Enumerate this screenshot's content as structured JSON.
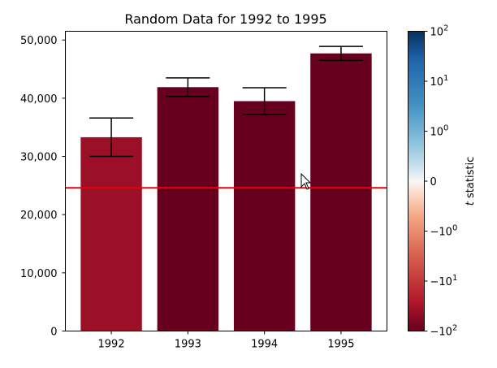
{
  "chart_data": {
    "type": "bar",
    "title": "Random Data for 1992 to 1995",
    "xlabel": "",
    "ylabel": "",
    "categories": [
      "1992",
      "1993",
      "1994",
      "1995"
    ],
    "values": [
      33300,
      41900,
      39500,
      47700
    ],
    "error": [
      3300,
      1600,
      2300,
      1200
    ],
    "bar_colors": [
      "#9b1026",
      "#67001f",
      "#67001f",
      "#67001f"
    ],
    "error_bar_color": "#000000",
    "ylim": [
      0,
      51500
    ],
    "yticks": [
      0,
      10000,
      20000,
      30000,
      40000,
      50000
    ],
    "ytick_labels": [
      "0",
      "10,000",
      "20,000",
      "30,000",
      "40,000",
      "50,000"
    ],
    "reference_line": {
      "y": 24600,
      "color": "#e8000b"
    },
    "grid": false,
    "colorbar": {
      "label_prefix": "t",
      "label_suffix": " statistic",
      "colormap": "RdBu",
      "scale": "symlog",
      "ticks": [
        {
          "base": "10",
          "exp": "2",
          "sign": ""
        },
        {
          "base": "10",
          "exp": "1",
          "sign": ""
        },
        {
          "base": "10",
          "exp": "0",
          "sign": ""
        },
        {
          "text": "0"
        },
        {
          "base": "10",
          "exp": "0",
          "sign": "−"
        },
        {
          "base": "10",
          "exp": "1",
          "sign": "−"
        },
        {
          "base": "10",
          "exp": "2",
          "sign": "−"
        }
      ]
    }
  }
}
